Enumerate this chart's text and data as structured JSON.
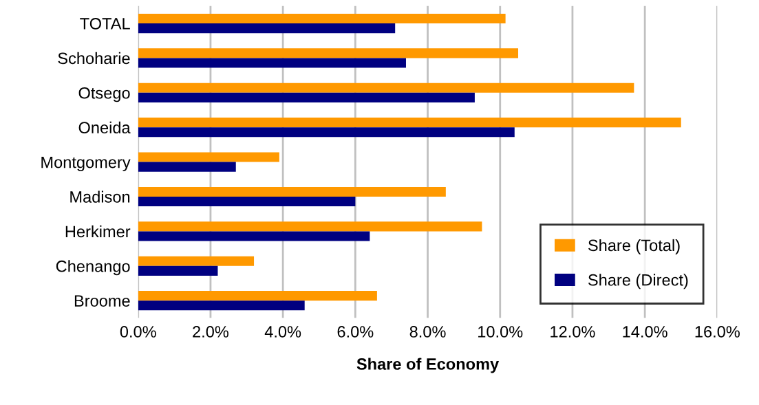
{
  "chart_data": {
    "type": "bar",
    "orientation": "horizontal",
    "xlabel": "Share of Economy",
    "categories": [
      "TOTAL",
      "Schoharie",
      "Otsego",
      "Oneida",
      "Montgomery",
      "Madison",
      "Herkimer",
      "Chenango",
      "Broome"
    ],
    "series": [
      {
        "name": "Share (Total)",
        "color": "#ff9900",
        "values": [
          10.15,
          10.5,
          13.7,
          15.0,
          3.9,
          8.5,
          9.5,
          3.2,
          6.6
        ]
      },
      {
        "name": "Share (Direct)",
        "color": "#000080",
        "values": [
          7.1,
          7.4,
          9.3,
          10.4,
          2.7,
          6.0,
          6.4,
          2.2,
          4.6
        ]
      }
    ],
    "xlim": [
      0,
      16
    ],
    "xticks": [
      {
        "value": 0,
        "label": "0.0%"
      },
      {
        "value": 2,
        "label": "2.0%"
      },
      {
        "value": 4,
        "label": "4.0%"
      },
      {
        "value": 6,
        "label": "6.0%"
      },
      {
        "value": 8,
        "label": "8.0%"
      },
      {
        "value": 10,
        "label": "10.0%"
      },
      {
        "value": 12,
        "label": "12.0%"
      },
      {
        "value": 14,
        "label": "14.0%"
      },
      {
        "value": 16,
        "label": "16.0%"
      }
    ],
    "grid": "x",
    "legend": "bottom right"
  }
}
